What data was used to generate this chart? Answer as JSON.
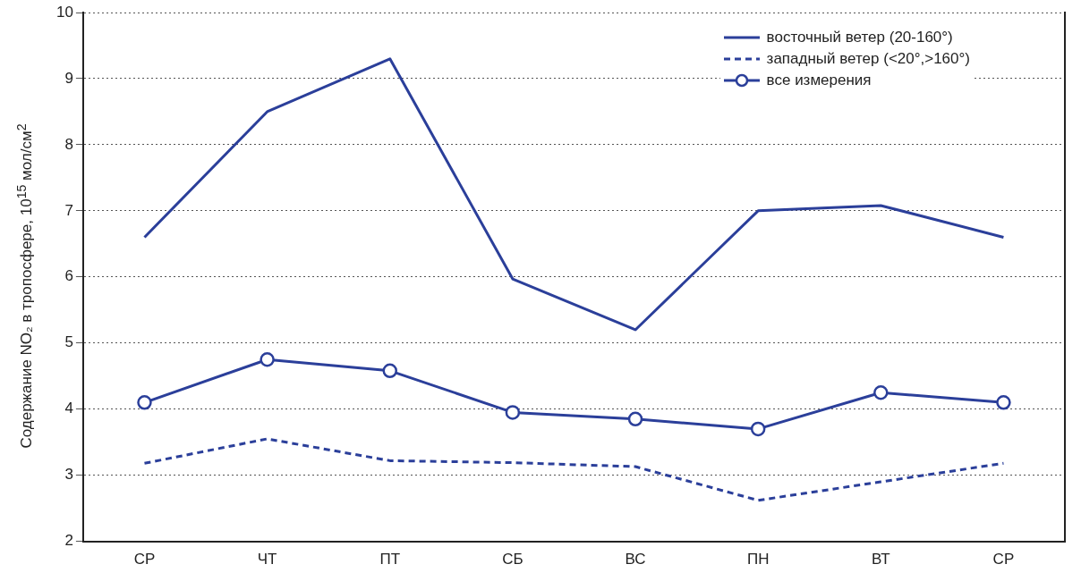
{
  "chart_data": {
    "type": "line",
    "ylabel": "Содержание NO₂ в тропосфере, 10$^{15}$ мол/см$^{2}$",
    "categories": [
      "СР",
      "ЧТ",
      "ПТ",
      "СБ",
      "ВС",
      "ПН",
      "ВТ",
      "СР"
    ],
    "series": [
      {
        "name": "восточный ветер (20-160°)",
        "color": "#2b3f9a",
        "values": [
          6.6,
          8.5,
          9.3,
          5.97,
          5.2,
          7.0,
          7.08,
          6.6
        ],
        "marker": "none",
        "line_style": "solid"
      },
      {
        "name": "западный ветер (<20°,>160°)",
        "color": "#2b3f9a",
        "values": [
          3.18,
          3.55,
          3.22,
          3.19,
          3.13,
          2.62,
          2.9,
          3.18
        ],
        "marker": "none",
        "line_style": "dashed"
      },
      {
        "name": "все измерения",
        "color": "#2b3f9a",
        "values": [
          4.1,
          4.75,
          4.58,
          3.95,
          3.85,
          3.7,
          4.25,
          4.1
        ],
        "marker": "circle",
        "line_style": "solid"
      }
    ],
    "ylim": [
      2,
      10
    ],
    "yticks": [
      2,
      3,
      4,
      5,
      6,
      7,
      8,
      9,
      10
    ],
    "grid": "y",
    "legend": "top right"
  }
}
